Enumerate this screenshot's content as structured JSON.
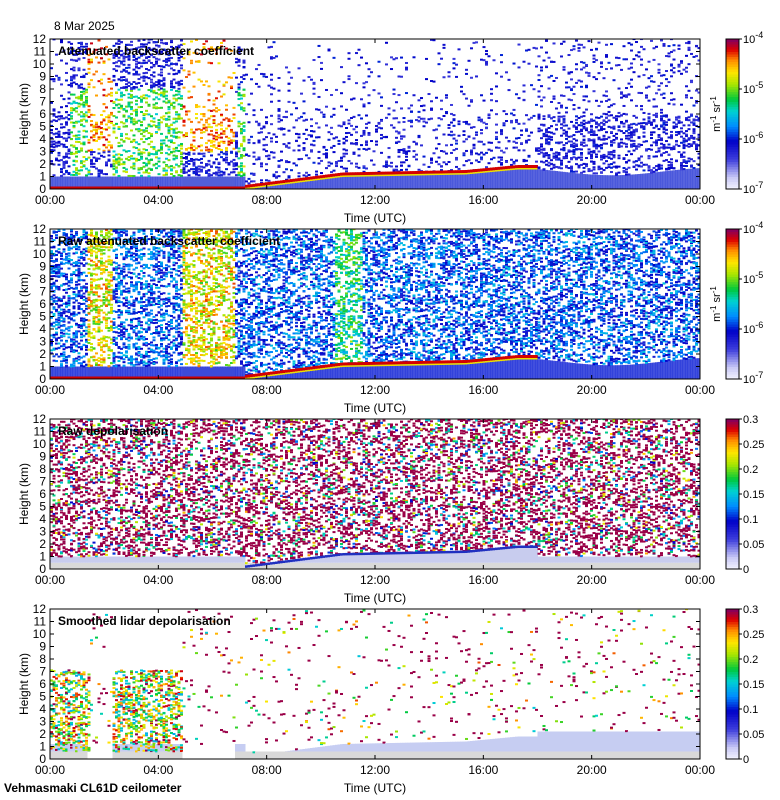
{
  "date_label": "8 Mar 2025",
  "footer": "Vehmasmaki CL61D ceilometer",
  "chart_data": [
    {
      "type": "heatmap",
      "title": "Attenuated backscatter coefficient",
      "xlabel": "Time (UTC)",
      "ylabel": "Height (km)",
      "x_ticks": [
        "00:00",
        "04:00",
        "08:00",
        "12:00",
        "16:00",
        "20:00",
        "00:00"
      ],
      "y_ticks": [
        "0",
        "1",
        "2",
        "3",
        "4",
        "5",
        "6",
        "7",
        "8",
        "9",
        "10",
        "11",
        "12"
      ],
      "ylim": [
        0,
        12
      ],
      "colorbar": {
        "scale": "log",
        "range": [
          1e-07,
          0.0001
        ],
        "ticks": [
          {
            "base": "10",
            "exp": "-7"
          },
          {
            "base": "10",
            "exp": "-6"
          },
          {
            "base": "10",
            "exp": "-5"
          },
          {
            "base": "10",
            "exp": "-4"
          }
        ],
        "unit_parts": {
          "a": "m",
          "a_exp": "-1",
          "b": "sr",
          "b_exp": "-1"
        }
      },
      "colormap": "rainbow",
      "style": "backscatter"
    },
    {
      "type": "heatmap",
      "title": "Raw attenuated backscatter coefficient",
      "xlabel": "Time (UTC)",
      "ylabel": "Height (km)",
      "x_ticks": [
        "00:00",
        "04:00",
        "08:00",
        "12:00",
        "16:00",
        "20:00",
        "00:00"
      ],
      "y_ticks": [
        "0",
        "1",
        "2",
        "3",
        "4",
        "5",
        "6",
        "7",
        "8",
        "9",
        "10",
        "11",
        "12"
      ],
      "ylim": [
        0,
        12
      ],
      "colorbar": {
        "scale": "log",
        "range": [
          1e-07,
          0.0001
        ],
        "ticks": [
          {
            "base": "10",
            "exp": "-7"
          },
          {
            "base": "10",
            "exp": "-6"
          },
          {
            "base": "10",
            "exp": "-5"
          },
          {
            "base": "10",
            "exp": "-4"
          }
        ],
        "unit_parts": {
          "a": "m",
          "a_exp": "-1",
          "b": "sr",
          "b_exp": "-1"
        }
      },
      "colormap": "rainbow",
      "style": "raw_backscatter"
    },
    {
      "type": "heatmap",
      "title": "Raw depolarisation",
      "xlabel": "Time (UTC)",
      "ylabel": "Height (km)",
      "x_ticks": [
        "00:00",
        "04:00",
        "08:00",
        "12:00",
        "16:00",
        "20:00",
        "00:00"
      ],
      "y_ticks": [
        "0",
        "1",
        "2",
        "3",
        "4",
        "5",
        "6",
        "7",
        "8",
        "9",
        "10",
        "11",
        "12"
      ],
      "ylim": [
        0,
        12
      ],
      "colorbar": {
        "scale": "linear",
        "range": [
          0,
          0.3
        ],
        "ticks": [
          "0",
          "0.05",
          "0.1",
          "0.15",
          "0.2",
          "0.25",
          "0.3"
        ]
      },
      "colormap": "rainbow",
      "style": "raw_depol"
    },
    {
      "type": "heatmap",
      "title": "Smoothed lidar depolarisation",
      "xlabel": "Time (UTC)",
      "ylabel": "Height (km)",
      "x_ticks": [
        "00:00",
        "04:00",
        "08:00",
        "12:00",
        "16:00",
        "20:00",
        "00:00"
      ],
      "y_ticks": [
        "0",
        "1",
        "2",
        "3",
        "4",
        "5",
        "6",
        "7",
        "8",
        "9",
        "10",
        "11",
        "12"
      ],
      "ylim": [
        0,
        12
      ],
      "colorbar": {
        "scale": "linear",
        "range": [
          0,
          0.3
        ],
        "ticks": [
          "0",
          "0.05",
          "0.1",
          "0.15",
          "0.2",
          "0.25",
          "0.3"
        ]
      },
      "colormap": "rainbow",
      "style": "smooth_depol"
    }
  ],
  "colors": {
    "missing": "#d9d9d9",
    "low": "#3a3ad8",
    "cloud": "#d40000"
  }
}
